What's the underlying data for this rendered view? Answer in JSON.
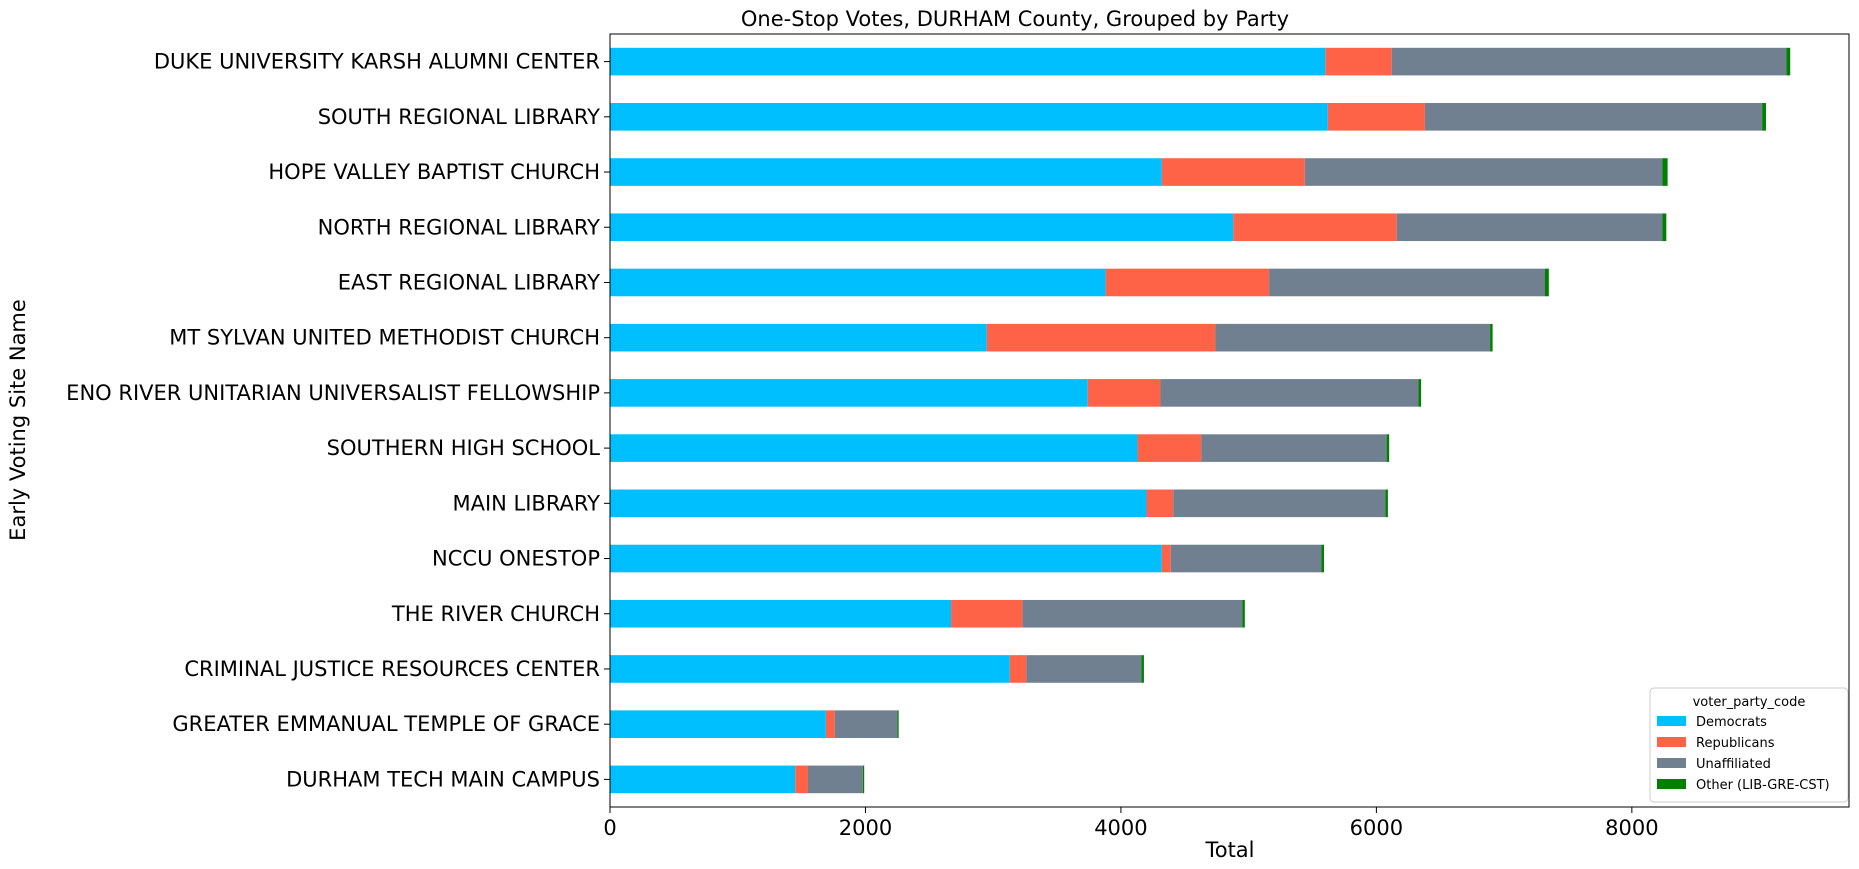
{
  "chart_data": {
    "type": "bar",
    "orientation": "horizontal",
    "stacked": true,
    "title": "One-Stop Votes, DURHAM County, Grouped by Party",
    "xlabel": "Total",
    "ylabel": "Early Voting Site Name",
    "xlim": [
      0,
      9700
    ],
    "xticks": [
      0,
      2000,
      4000,
      6000,
      8000
    ],
    "xtick_labels": [
      "0",
      "2000",
      "4000",
      "6000",
      "8000"
    ],
    "grid": false,
    "legend_position": "bottom-right",
    "legend_title": "voter_party_code",
    "categories": [
      "DUKE UNIVERSITY KARSH ALUMNI CENTER",
      "SOUTH REGIONAL LIBRARY",
      "HOPE VALLEY BAPTIST CHURCH",
      "NORTH REGIONAL LIBRARY",
      "EAST REGIONAL LIBRARY",
      "MT SYLVAN UNITED METHODIST CHURCH",
      "ENO RIVER UNITARIAN UNIVERSALIST FELLOWSHIP",
      "SOUTHERN HIGH SCHOOL",
      "MAIN LIBRARY",
      "NCCU ONESTOP",
      "THE RIVER CHURCH",
      "CRIMINAL JUSTICE RESOURCES CENTER",
      "GREATER EMMANUAL TEMPLE OF GRACE",
      "DURHAM TECH MAIN CAMPUS"
    ],
    "series": [
      {
        "name": "Democrats",
        "color": "#00BFFF",
        "values": [
          5600,
          5620,
          4320,
          4880,
          3880,
          2950,
          3740,
          4130,
          4200,
          4320,
          2670,
          3130,
          1690,
          1450
        ]
      },
      {
        "name": "Republicans",
        "color": "#FF6347",
        "values": [
          520,
          760,
          1120,
          1280,
          1280,
          1790,
          570,
          500,
          210,
          70,
          560,
          130,
          70,
          100
        ]
      },
      {
        "name": "Unaffiliated",
        "color": "#708090",
        "values": [
          3090,
          2640,
          2800,
          2080,
          2160,
          2150,
          2020,
          1450,
          1660,
          1180,
          1720,
          900,
          490,
          430
        ]
      },
      {
        "name": "Other (LIB-GRE-CST)",
        "color": "#008000",
        "values": [
          30,
          30,
          40,
          30,
          30,
          20,
          20,
          20,
          20,
          20,
          20,
          20,
          10,
          10
        ]
      }
    ]
  }
}
